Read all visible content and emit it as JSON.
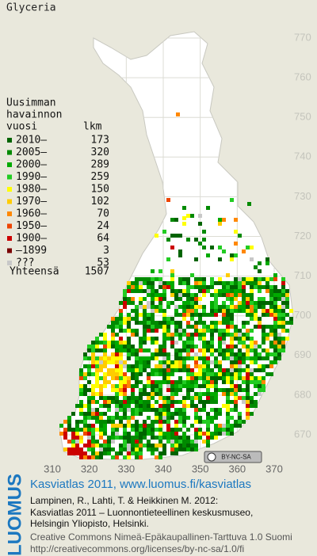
{
  "title": "Glyceria",
  "legend": {
    "heading": [
      "Uusimman",
      "havainnon",
      "vuosi"
    ],
    "count_heading": "lkm",
    "rows": [
      {
        "label": "2010–",
        "count": 173,
        "color": "#006400"
      },
      {
        "label": "2005–",
        "count": 320,
        "color": "#008a00"
      },
      {
        "label": "2000–",
        "count": 289,
        "color": "#00aa00"
      },
      {
        "label": "1990–",
        "count": 259,
        "color": "#22cc22"
      },
      {
        "label": "1980–",
        "count": 150,
        "color": "#ffff00"
      },
      {
        "label": "1970–",
        "count": 102,
        "color": "#ffcc00"
      },
      {
        "label": "1960–",
        "count": 70,
        "color": "#ff8800"
      },
      {
        "label": "1950–",
        "count": 24,
        "color": "#ee4400"
      },
      {
        "label": "1900–",
        "count": 64,
        "color": "#cc0000"
      },
      {
        "label": "–1899",
        "count": 3,
        "color": "#7a0000"
      },
      {
        "label": "???",
        "count": 53,
        "color": "#c8c8c8"
      }
    ],
    "total_label": "Yhteensä",
    "total": 1507
  },
  "map": {
    "xticks": [
      310,
      320,
      330,
      340,
      350,
      360,
      370
    ],
    "yticks": [
      670,
      680,
      690,
      700,
      710,
      720,
      730,
      740,
      750,
      760,
      770
    ],
    "license": "BY-NC-SA"
  },
  "footer": {
    "brand": "LUOMUS",
    "headline": "Kasviatlas 2011, www.luomus.fi/kasviatlas",
    "citation": [
      "Lampinen, R., Lahti, T. & Heikkinen M. 2012:",
      "Kasviatlas 2011 – Luonnontieteellinen keskusmuseo,",
      "Helsingin Yliopisto, Helsinki."
    ],
    "license_lines": [
      "Creative Commons Nimeä-Epäkaupallinen-Tarttuva 1.0 Suomi",
      "http://creativecommons.org/licenses/by-nc-sa/1.0/fi"
    ]
  }
}
